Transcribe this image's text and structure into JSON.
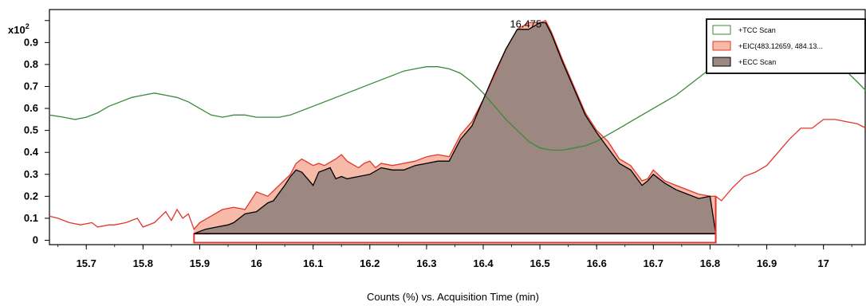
{
  "chart_data": {
    "type": "line",
    "xlabel": "Counts (%) vs. Acquisition Time (min)",
    "y_multiplier": "x10",
    "y_multiplier_exp": "2",
    "xlim": [
      15.635,
      17.075
    ],
    "ylim": [
      -0.02,
      1.05
    ],
    "x_ticks": [
      "15.7",
      "15.8",
      "15.9",
      "16",
      "16.1",
      "16.2",
      "16.3",
      "16.4",
      "16.5",
      "16.6",
      "16.7",
      "16.8",
      "16.9",
      "17"
    ],
    "y_ticks": [
      "0",
      "0.1",
      "0.2",
      "0.3",
      "0.4",
      "0.5",
      "0.6",
      "0.7",
      "0.8",
      "0.9"
    ],
    "peak_label": {
      "x": 16.475,
      "y": 0.99,
      "text": "16.475"
    },
    "integration_range": [
      15.89,
      16.81
    ],
    "legend": [
      {
        "label": "+TCC Scan",
        "color": "#3a8a3a",
        "fill": "#ffffff"
      },
      {
        "label": "+EIC(483.12659, 484.13...",
        "color": "#e3362c",
        "fill": "#f7b9a8"
      },
      {
        "label": "+ECC Scan",
        "color": "#000000",
        "fill": "#9c8880"
      }
    ],
    "series": [
      {
        "name": "+TCC Scan",
        "color": "#3a8a3a",
        "x": [
          15.635,
          15.66,
          15.68,
          15.7,
          15.72,
          15.74,
          15.76,
          15.78,
          15.8,
          15.82,
          15.84,
          15.86,
          15.88,
          15.9,
          15.92,
          15.94,
          15.96,
          15.98,
          16.0,
          16.02,
          16.04,
          16.06,
          16.08,
          16.1,
          16.12,
          16.14,
          16.16,
          16.18,
          16.2,
          16.22,
          16.24,
          16.26,
          16.28,
          16.3,
          16.32,
          16.34,
          16.36,
          16.38,
          16.4,
          16.42,
          16.44,
          16.46,
          16.48,
          16.5,
          16.52,
          16.54,
          16.56,
          16.58,
          16.6,
          16.62,
          16.64,
          16.66,
          16.68,
          16.7,
          16.72,
          16.74,
          16.76,
          16.78,
          16.8,
          16.82,
          16.84,
          16.86,
          16.88,
          16.9,
          16.92,
          16.94,
          16.96,
          16.98,
          17.0,
          17.02,
          17.04,
          17.06,
          17.075
        ],
        "y": [
          0.57,
          0.56,
          0.55,
          0.56,
          0.58,
          0.61,
          0.63,
          0.65,
          0.66,
          0.67,
          0.66,
          0.65,
          0.63,
          0.6,
          0.57,
          0.56,
          0.57,
          0.57,
          0.56,
          0.56,
          0.56,
          0.57,
          0.59,
          0.61,
          0.63,
          0.65,
          0.67,
          0.69,
          0.71,
          0.73,
          0.75,
          0.77,
          0.78,
          0.79,
          0.79,
          0.78,
          0.76,
          0.72,
          0.67,
          0.61,
          0.55,
          0.5,
          0.45,
          0.42,
          0.41,
          0.41,
          0.42,
          0.43,
          0.45,
          0.48,
          0.51,
          0.54,
          0.57,
          0.6,
          0.63,
          0.66,
          0.7,
          0.74,
          0.78,
          0.83,
          0.88,
          0.92,
          0.96,
          0.99,
          1.0,
          0.99,
          0.96,
          0.92,
          0.87,
          0.82,
          0.77,
          0.72,
          0.68
        ]
      },
      {
        "name": "+EIC(483.12659, 484.13...",
        "color": "#e3362c",
        "x": [
          15.635,
          15.65,
          15.67,
          15.69,
          15.71,
          15.72,
          15.74,
          15.75,
          15.77,
          15.79,
          15.8,
          15.82,
          15.84,
          15.85,
          15.86,
          15.87,
          15.88,
          15.89,
          15.9,
          15.92,
          15.94,
          15.96,
          15.98,
          16.0,
          16.02,
          16.04,
          16.06,
          16.07,
          16.08,
          16.1,
          16.11,
          16.12,
          16.14,
          16.15,
          16.16,
          16.18,
          16.19,
          16.2,
          16.21,
          16.22,
          16.24,
          16.26,
          16.28,
          16.3,
          16.32,
          16.34,
          16.36,
          16.38,
          16.4,
          16.42,
          16.44,
          16.46,
          16.48,
          16.5,
          16.51,
          16.52,
          16.54,
          16.56,
          16.58,
          16.6,
          16.62,
          16.64,
          16.66,
          16.68,
          16.69,
          16.7,
          16.72,
          16.74,
          16.76,
          16.78,
          16.8,
          16.81,
          16.82,
          16.84,
          16.86,
          16.88,
          16.9,
          16.92,
          16.94,
          16.96,
          16.98,
          17.0,
          17.02,
          17.04,
          17.06,
          17.075
        ],
        "y": [
          0.11,
          0.1,
          0.08,
          0.07,
          0.08,
          0.06,
          0.07,
          0.07,
          0.08,
          0.1,
          0.06,
          0.08,
          0.13,
          0.09,
          0.14,
          0.1,
          0.12,
          0.05,
          0.08,
          0.11,
          0.14,
          0.15,
          0.14,
          0.22,
          0.2,
          0.25,
          0.3,
          0.35,
          0.37,
          0.34,
          0.35,
          0.34,
          0.37,
          0.39,
          0.36,
          0.33,
          0.35,
          0.36,
          0.33,
          0.35,
          0.34,
          0.35,
          0.36,
          0.38,
          0.39,
          0.38,
          0.48,
          0.54,
          0.64,
          0.75,
          0.87,
          0.96,
          0.99,
          0.99,
          1.0,
          0.95,
          0.82,
          0.7,
          0.58,
          0.5,
          0.45,
          0.37,
          0.34,
          0.27,
          0.28,
          0.32,
          0.27,
          0.25,
          0.23,
          0.21,
          0.2,
          0.2,
          0.18,
          0.24,
          0.29,
          0.31,
          0.34,
          0.4,
          0.46,
          0.51,
          0.51,
          0.55,
          0.55,
          0.54,
          0.53,
          0.51
        ]
      },
      {
        "name": "+ECC Scan",
        "color": "#000000",
        "x": [
          15.89,
          15.91,
          15.93,
          15.95,
          15.96,
          15.98,
          16.0,
          16.01,
          16.02,
          16.03,
          16.05,
          16.06,
          16.07,
          16.08,
          16.09,
          16.1,
          16.11,
          16.12,
          16.13,
          16.14,
          16.15,
          16.16,
          16.18,
          16.2,
          16.22,
          16.24,
          16.26,
          16.28,
          16.3,
          16.32,
          16.34,
          16.35,
          16.36,
          16.38,
          16.4,
          16.42,
          16.44,
          16.46,
          16.48,
          16.5,
          16.51,
          16.52,
          16.54,
          16.56,
          16.58,
          16.6,
          16.62,
          16.64,
          16.66,
          16.68,
          16.69,
          16.7,
          16.72,
          16.74,
          16.76,
          16.78,
          16.8,
          16.81
        ],
        "y": [
          0.03,
          0.05,
          0.06,
          0.07,
          0.08,
          0.12,
          0.13,
          0.15,
          0.17,
          0.18,
          0.25,
          0.29,
          0.32,
          0.31,
          0.28,
          0.25,
          0.31,
          0.32,
          0.33,
          0.28,
          0.29,
          0.28,
          0.29,
          0.3,
          0.33,
          0.32,
          0.32,
          0.34,
          0.35,
          0.36,
          0.36,
          0.41,
          0.46,
          0.52,
          0.64,
          0.76,
          0.87,
          0.96,
          0.96,
          0.99,
          0.99,
          0.94,
          0.81,
          0.69,
          0.57,
          0.49,
          0.42,
          0.35,
          0.32,
          0.25,
          0.27,
          0.3,
          0.26,
          0.23,
          0.21,
          0.19,
          0.2,
          0.03
        ]
      }
    ]
  }
}
